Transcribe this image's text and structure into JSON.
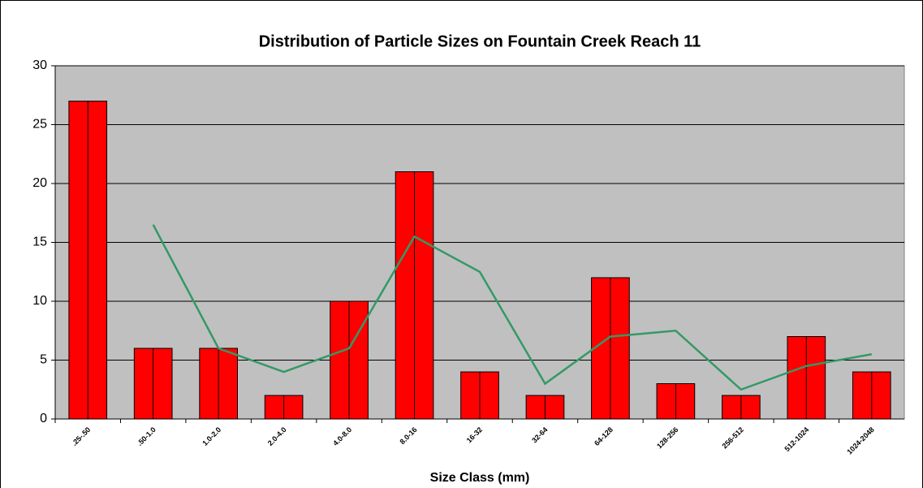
{
  "chart_data": {
    "type": "bar",
    "title": "Distribution of Particle Sizes on Fountain Creek Reach 11",
    "x_label": "Size Class (mm)",
    "categories": [
      ".25-.50",
      ".50-1.0",
      "1.0-2.0",
      "2.0-4.0",
      "4.0-8.0",
      "8.0-16",
      "16-32",
      "32-64",
      "64-128",
      "128-256",
      "256-512",
      "512-1024",
      "1024-2048"
    ],
    "values": [
      27,
      6,
      6,
      2,
      10,
      21,
      4,
      2,
      12,
      3,
      2,
      7,
      4
    ],
    "color": "#ff0000",
    "line": {
      "color": "#339966",
      "values": [
        null,
        16.5,
        6,
        4,
        6,
        15.5,
        12.5,
        3,
        7,
        7.5,
        2.5,
        4.5,
        5.5
      ]
    },
    "ylim": [
      0,
      30
    ],
    "yticks": [
      0,
      5,
      10,
      15,
      20,
      25,
      30
    ],
    "grid": true,
    "plot_background": "#c0c0c0"
  }
}
